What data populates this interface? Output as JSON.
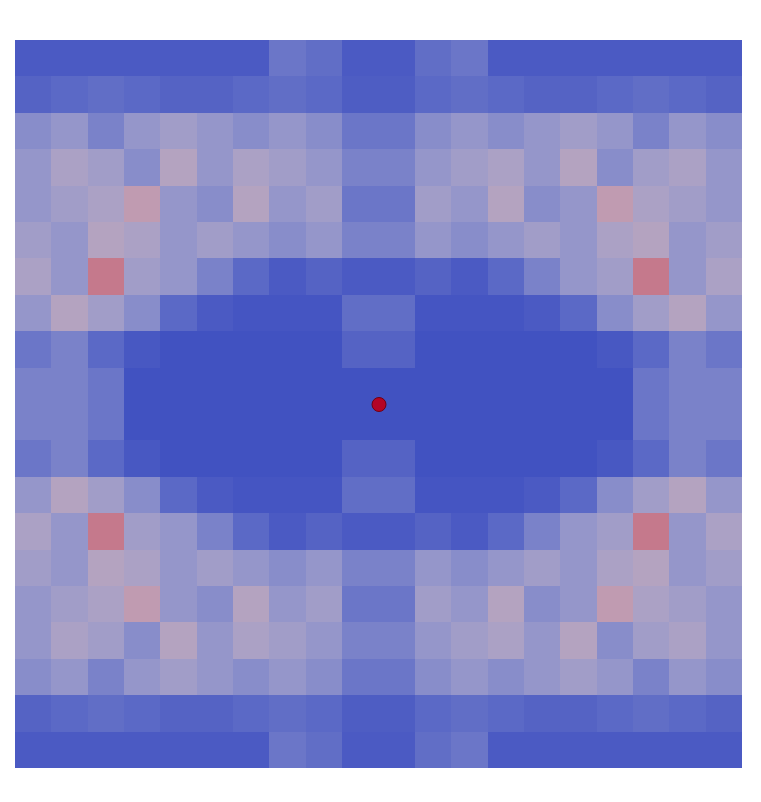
{
  "chart_data": {
    "type": "heatmap",
    "tick_labels": false,
    "xlim": [
      0,
      20
    ],
    "ylim": [
      0,
      20
    ],
    "color_range": [
      0,
      1
    ],
    "cells": [
      [
        0.05,
        0.05,
        0.05,
        0.05,
        0.05,
        0.05,
        0.05,
        0.15,
        0.12,
        0.05,
        0.05,
        0.12,
        0.15,
        0.05,
        0.05,
        0.05,
        0.05,
        0.05,
        0.05,
        0.05
      ],
      [
        0.08,
        0.1,
        0.12,
        0.1,
        0.08,
        0.08,
        0.1,
        0.12,
        0.1,
        0.06,
        0.06,
        0.1,
        0.12,
        0.1,
        0.08,
        0.08,
        0.1,
        0.12,
        0.1,
        0.08
      ],
      [
        0.25,
        0.3,
        0.2,
        0.3,
        0.35,
        0.3,
        0.25,
        0.3,
        0.25,
        0.15,
        0.15,
        0.25,
        0.3,
        0.25,
        0.3,
        0.35,
        0.3,
        0.2,
        0.3,
        0.25
      ],
      [
        0.3,
        0.4,
        0.35,
        0.25,
        0.45,
        0.3,
        0.4,
        0.35,
        0.3,
        0.2,
        0.2,
        0.3,
        0.35,
        0.4,
        0.3,
        0.45,
        0.25,
        0.35,
        0.4,
        0.3
      ],
      [
        0.3,
        0.35,
        0.4,
        0.55,
        0.3,
        0.25,
        0.45,
        0.3,
        0.35,
        0.15,
        0.15,
        0.35,
        0.3,
        0.45,
        0.25,
        0.3,
        0.55,
        0.4,
        0.35,
        0.3
      ],
      [
        0.35,
        0.3,
        0.45,
        0.4,
        0.3,
        0.35,
        0.3,
        0.25,
        0.3,
        0.2,
        0.2,
        0.3,
        0.25,
        0.3,
        0.35,
        0.3,
        0.4,
        0.45,
        0.3,
        0.35
      ],
      [
        0.4,
        0.3,
        0.7,
        0.35,
        0.3,
        0.2,
        0.1,
        0.05,
        0.08,
        0.05,
        0.05,
        0.08,
        0.05,
        0.1,
        0.2,
        0.3,
        0.35,
        0.7,
        0.3,
        0.4
      ],
      [
        0.3,
        0.45,
        0.35,
        0.25,
        0.1,
        0.05,
        0.03,
        0.03,
        0.03,
        0.12,
        0.12,
        0.03,
        0.03,
        0.03,
        0.05,
        0.1,
        0.25,
        0.35,
        0.45,
        0.3
      ],
      [
        0.15,
        0.2,
        0.1,
        0.04,
        0.02,
        0.02,
        0.02,
        0.02,
        0.02,
        0.08,
        0.08,
        0.02,
        0.02,
        0.02,
        0.02,
        0.02,
        0.04,
        0.1,
        0.2,
        0.15
      ],
      [
        0.2,
        0.2,
        0.15,
        0.02,
        0.02,
        0.02,
        0.02,
        0.02,
        0.02,
        0.02,
        0.02,
        0.02,
        0.02,
        0.02,
        0.02,
        0.02,
        0.02,
        0.15,
        0.2,
        0.2
      ],
      [
        0.2,
        0.2,
        0.15,
        0.02,
        0.02,
        0.02,
        0.02,
        0.02,
        0.02,
        0.02,
        0.02,
        0.02,
        0.02,
        0.02,
        0.02,
        0.02,
        0.02,
        0.15,
        0.2,
        0.2
      ],
      [
        0.15,
        0.2,
        0.1,
        0.04,
        0.02,
        0.02,
        0.02,
        0.02,
        0.02,
        0.08,
        0.08,
        0.02,
        0.02,
        0.02,
        0.02,
        0.02,
        0.04,
        0.1,
        0.2,
        0.15
      ],
      [
        0.3,
        0.45,
        0.35,
        0.25,
        0.1,
        0.05,
        0.03,
        0.03,
        0.03,
        0.12,
        0.12,
        0.03,
        0.03,
        0.03,
        0.05,
        0.1,
        0.25,
        0.35,
        0.45,
        0.3
      ],
      [
        0.4,
        0.3,
        0.7,
        0.35,
        0.3,
        0.2,
        0.1,
        0.05,
        0.08,
        0.05,
        0.05,
        0.08,
        0.05,
        0.1,
        0.2,
        0.3,
        0.35,
        0.7,
        0.3,
        0.4
      ],
      [
        0.35,
        0.3,
        0.45,
        0.4,
        0.3,
        0.35,
        0.3,
        0.25,
        0.3,
        0.2,
        0.2,
        0.3,
        0.25,
        0.3,
        0.35,
        0.3,
        0.4,
        0.45,
        0.3,
        0.35
      ],
      [
        0.3,
        0.35,
        0.4,
        0.55,
        0.3,
        0.25,
        0.45,
        0.3,
        0.35,
        0.15,
        0.15,
        0.35,
        0.3,
        0.45,
        0.25,
        0.3,
        0.55,
        0.4,
        0.35,
        0.3
      ],
      [
        0.3,
        0.4,
        0.35,
        0.25,
        0.45,
        0.3,
        0.4,
        0.35,
        0.3,
        0.2,
        0.2,
        0.3,
        0.35,
        0.4,
        0.3,
        0.45,
        0.25,
        0.35,
        0.4,
        0.3
      ],
      [
        0.25,
        0.3,
        0.2,
        0.3,
        0.35,
        0.3,
        0.25,
        0.3,
        0.25,
        0.15,
        0.15,
        0.25,
        0.3,
        0.25,
        0.3,
        0.35,
        0.3,
        0.2,
        0.3,
        0.25
      ],
      [
        0.08,
        0.1,
        0.12,
        0.1,
        0.08,
        0.08,
        0.1,
        0.12,
        0.1,
        0.06,
        0.06,
        0.1,
        0.12,
        0.1,
        0.08,
        0.08,
        0.1,
        0.12,
        0.1,
        0.08
      ],
      [
        0.05,
        0.05,
        0.05,
        0.05,
        0.05,
        0.05,
        0.05,
        0.15,
        0.12,
        0.05,
        0.05,
        0.12,
        0.15,
        0.05,
        0.05,
        0.05,
        0.05,
        0.05,
        0.05,
        0.05
      ]
    ],
    "points": [
      {
        "x": 10,
        "y": 10,
        "color": "#b40426"
      }
    ]
  }
}
